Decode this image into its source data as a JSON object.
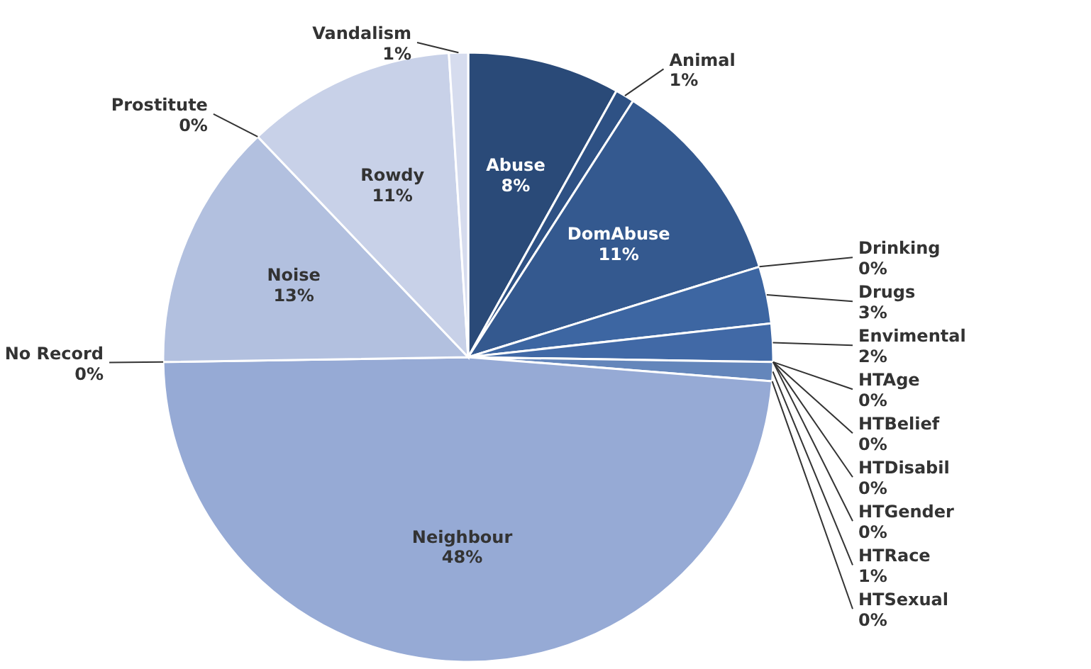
{
  "chart_data": {
    "type": "pie",
    "categories": [
      "Abuse",
      "Animal",
      "DomAbuse",
      "Drinking",
      "Drugs",
      "Envimental",
      "HTAge",
      "HTBelief",
      "HTDisabil",
      "HTGender",
      "HTRace",
      "HTSexual",
      "Neighbour",
      "No Record",
      "Noise",
      "Prostitute",
      "Rowdy",
      "Vandalism"
    ],
    "values": [
      8,
      1,
      11,
      0,
      3,
      2,
      0,
      0,
      0,
      0,
      1,
      0,
      48,
      0,
      13,
      0,
      11,
      1
    ],
    "value_labels": [
      "8%",
      "1%",
      "11%",
      "0%",
      "3%",
      "2%",
      "0%",
      "0%",
      "0%",
      "0%",
      "1%",
      "0%",
      "48%",
      "0%",
      "13%",
      "0%",
      "11%",
      "1%"
    ],
    "colors": [
      "#2a4a78",
      "#2e5184",
      "#34598f",
      "#3a6199",
      "#3d66a2",
      "#4169a6",
      "#476eaa",
      "#4d74ad",
      "#5479b1",
      "#5b7fb4",
      "#6486bb",
      "#6d8dc0",
      "#96aad5",
      "#a3b4da",
      "#b2c0df",
      "#bcc8e3",
      "#c8d1e8",
      "#d6dcee"
    ]
  }
}
